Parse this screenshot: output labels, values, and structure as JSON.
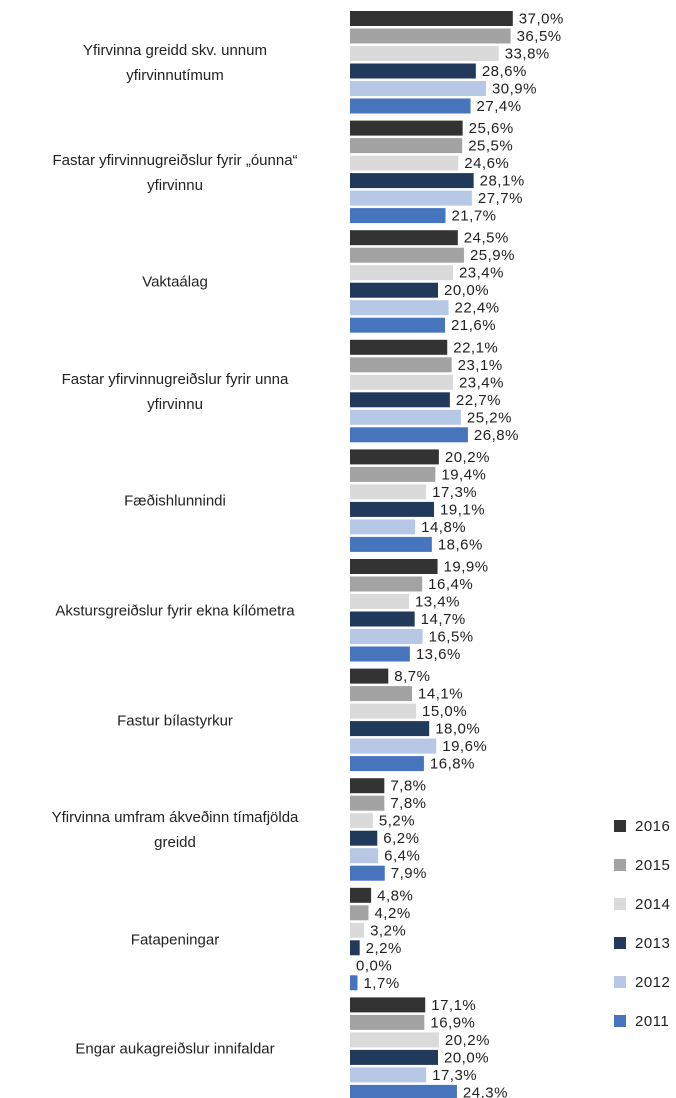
{
  "chart_data": {
    "type": "bar",
    "orientation": "horizontal",
    "categories": [
      "Yfirvinna greidd skv. unnum\nyfirvinnutímum",
      "Fastar yfirvinnugreiðslur fyrir „óunna“\nyfirvinnu",
      "Vaktaálag",
      "Fastar yfirvinnugreiðslur fyrir unna\nyfirvinnu",
      "Fæðishlunnindi",
      "Akstursgreiðslur fyrir ekna kílómetra",
      "Fastur bílastyrkur",
      "Yfirvinna umfram ákveðinn tímafjölda\ngreidd",
      "Fatapeningar",
      "Engar aukagreiðslur innifaldar"
    ],
    "series": [
      {
        "name": "2016",
        "color": "#333333",
        "values": [
          37.0,
          25.6,
          24.5,
          22.1,
          20.2,
          19.9,
          8.7,
          7.8,
          4.8,
          17.1
        ],
        "value_labels": [
          "37,0%",
          "25,6%",
          "24,5%",
          "22,1%",
          "20,2%",
          "19,9%",
          "8,7%",
          "7,8%",
          "4,8%",
          "17,1%"
        ]
      },
      {
        "name": "2015",
        "color": "#a3a3a3",
        "values": [
          36.5,
          25.5,
          25.9,
          23.1,
          19.4,
          16.4,
          14.1,
          7.8,
          4.2,
          16.9
        ],
        "value_labels": [
          "36,5%",
          "25,5%",
          "25,9%",
          "23,1%",
          "19,4%",
          "16,4%",
          "14,1%",
          "7,8%",
          "4,2%",
          "16,9%"
        ]
      },
      {
        "name": "2014",
        "color": "#dadada",
        "values": [
          33.8,
          24.6,
          23.4,
          23.4,
          17.3,
          13.4,
          15.0,
          5.2,
          3.2,
          20.2
        ],
        "value_labels": [
          "33,8%",
          "24,6%",
          "23,4%",
          "23,4%",
          "17,3%",
          "13,4%",
          "15,0%",
          "5,2%",
          "3,2%",
          "20,2%"
        ]
      },
      {
        "name": "2013",
        "color": "#213a5c",
        "values": [
          28.6,
          28.1,
          20.0,
          22.7,
          19.1,
          14.7,
          18.0,
          6.2,
          2.2,
          20.0
        ],
        "value_labels": [
          "28,6%",
          "28,1%",
          "20,0%",
          "22,7%",
          "19,1%",
          "14,7%",
          "18,0%",
          "6,2%",
          "2,2%",
          "20,0%"
        ]
      },
      {
        "name": "2012",
        "color": "#b6c8e6",
        "values": [
          30.9,
          27.7,
          22.4,
          25.2,
          14.8,
          16.5,
          19.6,
          6.4,
          0.0,
          17.3
        ],
        "value_labels": [
          "30,9%",
          "27,7%",
          "22,4%",
          "25,2%",
          "14,8%",
          "16,5%",
          "19,6%",
          "6,4%",
          "0,0%",
          "17,3%"
        ]
      },
      {
        "name": "2011",
        "color": "#4674bd",
        "values": [
          27.4,
          21.7,
          21.6,
          26.8,
          18.6,
          13.6,
          16.8,
          7.9,
          1.7,
          24.3
        ],
        "value_labels": [
          "27,4%",
          "21,7%",
          "21,6%",
          "26,8%",
          "18,6%",
          "13,6%",
          "16,8%",
          "7,9%",
          "1,7%",
          "24,3%"
        ]
      }
    ],
    "legend": "right"
  }
}
